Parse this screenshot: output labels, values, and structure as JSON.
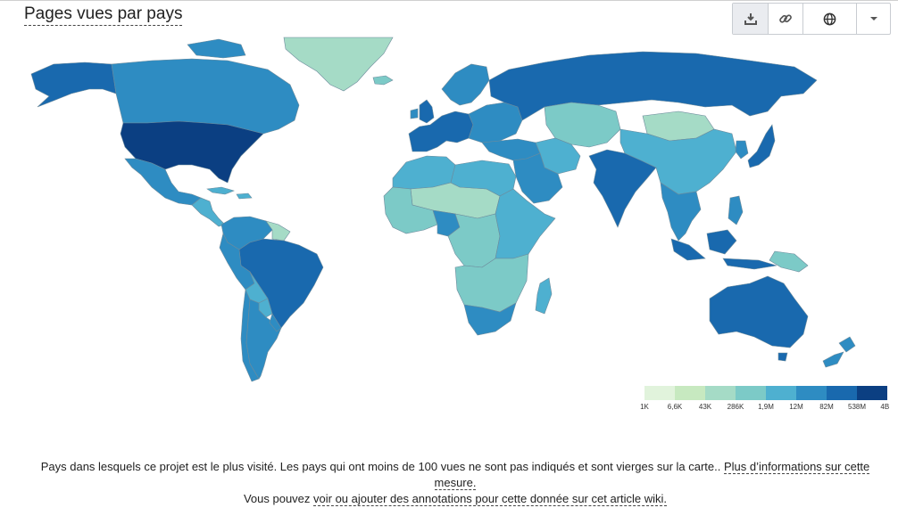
{
  "title": "Pages vues par pays",
  "toolbar": [
    {
      "name": "download-button",
      "icon": "download-icon"
    },
    {
      "name": "link-button",
      "icon": "link-icon"
    },
    {
      "name": "map-view-button",
      "icon": "globe-icon"
    },
    {
      "name": "chart-type-dropdown",
      "icon": "caret-down-icon"
    }
  ],
  "legend": {
    "colors": [
      "#e1f3dc",
      "#c7e9c0",
      "#a5dbc6",
      "#7ccac7",
      "#4eb0d0",
      "#2e8cc2",
      "#1969ae",
      "#0b3f82"
    ],
    "ticks": [
      "1K",
      "6,6K",
      "43K",
      "286K",
      "1,9M",
      "12M",
      "82M",
      "538M",
      "4B"
    ]
  },
  "footnote": {
    "text1": "Pays dans lesquels ce projet est le plus visité. Les pays qui ont moins de 100 vues ne sont pas indiqués et sont vierges sur la carte.. ",
    "link1": "Plus d’informations sur cette mesure.",
    "text2": "Vous pouvez ",
    "link2": "voir ou ajouter des annotations pour cette donnée sur cet article wiki."
  },
  "map_regions": [
    {
      "name": "Alaska",
      "level": 7
    },
    {
      "name": "Canada",
      "level": 6
    },
    {
      "name": "United States",
      "level": 8
    },
    {
      "name": "Mexico",
      "level": 6
    },
    {
      "name": "Central America",
      "level": 5
    },
    {
      "name": "Caribbean",
      "level": 5
    },
    {
      "name": "Greenland",
      "level": 3
    },
    {
      "name": "Iceland",
      "level": 4
    },
    {
      "name": "Colombia / Venezuela",
      "level": 6
    },
    {
      "name": "Guianas",
      "level": 3
    },
    {
      "name": "Brazil",
      "level": 7
    },
    {
      "name": "Peru",
      "level": 6
    },
    {
      "name": "Bolivia",
      "level": 5
    },
    {
      "name": "Paraguay",
      "level": 5
    },
    {
      "name": "Chile",
      "level": 6
    },
    {
      "name": "Argentina",
      "level": 6
    },
    {
      "name": "Uruguay",
      "level": 6
    },
    {
      "name": "United Kingdom",
      "level": 7
    },
    {
      "name": "Ireland",
      "level": 6
    },
    {
      "name": "Scandinavia",
      "level": 6
    },
    {
      "name": "Western Europe",
      "level": 7
    },
    {
      "name": "Eastern Europe",
      "level": 6
    },
    {
      "name": "Russia",
      "level": 7
    },
    {
      "name": "Turkey / Middle East",
      "level": 6
    },
    {
      "name": "Central Asia",
      "level": 4
    },
    {
      "name": "Iran",
      "level": 5
    },
    {
      "name": "Saudi Arabia",
      "level": 6
    },
    {
      "name": "India",
      "level": 7
    },
    {
      "name": "China",
      "level": 5
    },
    {
      "name": "Mongolia",
      "level": 3
    },
    {
      "name": "Japan",
      "level": 7
    },
    {
      "name": "Korea",
      "level": 6
    },
    {
      "name": "Southeast Asia",
      "level": 6
    },
    {
      "name": "Indonesia",
      "level": 7
    },
    {
      "name": "Philippines",
      "level": 6
    },
    {
      "name": "Papua New Guinea",
      "level": 4
    },
    {
      "name": "North Africa West",
      "level": 5
    },
    {
      "name": "Sahel",
      "level": 3
    },
    {
      "name": "Egypt / Libya",
      "level": 5
    },
    {
      "name": "West Africa",
      "level": 4
    },
    {
      "name": "Nigeria",
      "level": 6
    },
    {
      "name": "Central Africa",
      "level": 4
    },
    {
      "name": "East Africa",
      "level": 5
    },
    {
      "name": "Southern Africa North",
      "level": 4
    },
    {
      "name": "South Africa",
      "level": 6
    },
    {
      "name": "Madagascar",
      "level": 5
    },
    {
      "name": "Australia",
      "level": 7
    },
    {
      "name": "New Zealand",
      "level": 6
    }
  ]
}
